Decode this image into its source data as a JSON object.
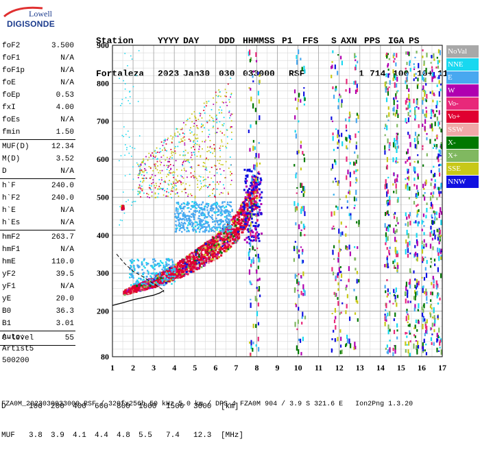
{
  "logo": {
    "line1": "Lowell",
    "line2": "DIGISONDE"
  },
  "header": {
    "labels": [
      "Station",
      "YYYY",
      "DAY",
      "DDD",
      "HHMMSS",
      "P1",
      "FFS",
      "S",
      "AXN",
      "PPS",
      "IGA",
      "PS"
    ],
    "values": [
      "Fortaleza",
      "2023",
      "Jan30",
      "030",
      "033000",
      "RSF",
      "1",
      "714",
      "100",
      "10+",
      "11"
    ]
  },
  "params": [
    {
      "name": "foF2",
      "value": "3.500"
    },
    {
      "name": "foF1",
      "value": "N/A"
    },
    {
      "name": "foF1p",
      "value": "N/A"
    },
    {
      "name": "foE",
      "value": "N/A"
    },
    {
      "name": "foEp",
      "value": "0.53"
    },
    {
      "name": "fxI",
      "value": "4.00"
    },
    {
      "name": "foEs",
      "value": "N/A"
    },
    {
      "name": "fmin",
      "value": "1.50"
    },
    {
      "sep": true
    },
    {
      "name": "MUF(D)",
      "value": "12.34"
    },
    {
      "name": "M(D)",
      "value": "3.52"
    },
    {
      "name": "D",
      "value": "N/A"
    },
    {
      "sep": true
    },
    {
      "name": "h`F",
      "value": "240.0"
    },
    {
      "name": "h`F2",
      "value": "240.0"
    },
    {
      "name": "h`E",
      "value": "N/A"
    },
    {
      "name": "h`Es",
      "value": "N/A"
    },
    {
      "sep": true
    },
    {
      "name": "hmF2",
      "value": "263.7"
    },
    {
      "name": "hmF1",
      "value": "N/A"
    },
    {
      "name": "hmE",
      "value": "110.0"
    },
    {
      "name": "yF2",
      "value": "39.5"
    },
    {
      "name": "yF1",
      "value": "N/A"
    },
    {
      "name": "yE",
      "value": "20.0"
    },
    {
      "name": "B0",
      "value": "36.3"
    },
    {
      "name": "B1",
      "value": "3.01"
    },
    {
      "sep": true
    },
    {
      "name": "C-level",
      "value": "55"
    },
    {
      "sep": true
    }
  ],
  "auto": {
    "line1": "Auto:",
    "line2": "Artist5",
    "line3": "500200"
  },
  "legend": [
    {
      "label": "NoVal",
      "color": "#a8a8a8"
    },
    {
      "label": "NNE",
      "color": "#18d8f0"
    },
    {
      "label": "E",
      "color": "#48a8f0"
    },
    {
      "label": "W",
      "color": "#b000b0"
    },
    {
      "label": "Vo-",
      "color": "#e8287a"
    },
    {
      "label": "Vo+",
      "color": "#e00030"
    },
    {
      "label": "SSW",
      "color": "#f0a8a8"
    },
    {
      "label": "X-",
      "color": "#007800"
    },
    {
      "label": "X+",
      "color": "#80b860"
    },
    {
      "label": "SSE",
      "color": "#c8c818"
    },
    {
      "label": "NNW",
      "color": "#1010e0"
    }
  ],
  "bottom": {
    "d_row": [
      "D",
      "100",
      "200",
      "400",
      "600",
      "800",
      "1000",
      "1500",
      "3000",
      "[km]"
    ],
    "muf_row": [
      "MUF",
      "3.8",
      "3.9",
      "4.1",
      "4.4",
      "4.8",
      "5.5",
      "7.4",
      "12.3",
      "[MHz]"
    ]
  },
  "footer": "FZA0M_2023030033000.RSF / 320fx256h 50 kHz 5.0 km / DPS-4 FZA0M 904 / 3.9 S 321.6 E   Ion2Png 1.3.20",
  "chart_data": {
    "type": "scatter",
    "xlim": [
      1,
      17
    ],
    "ylim": [
      80,
      900
    ],
    "x_ticks": [
      1,
      2,
      3,
      4,
      5,
      6,
      7,
      8,
      9,
      10,
      11,
      12,
      13,
      14,
      15,
      16,
      17
    ],
    "y_ticks": [
      80,
      200,
      300,
      400,
      500,
      600,
      700,
      800,
      900
    ],
    "grid": true,
    "legend_position": "right",
    "profile_curve": {
      "x": [
        1.0,
        1.5,
        2.0,
        2.5,
        3.0,
        3.3,
        3.5
      ],
      "y": [
        215,
        222,
        230,
        236,
        242,
        248,
        255
      ]
    },
    "dashed_curve": {
      "x": [
        1.2,
        1.6,
        2.0,
        2.5,
        3.0,
        3.4,
        3.5
      ],
      "y": [
        350,
        325,
        305,
        290,
        272,
        258,
        250
      ]
    },
    "o_trace": {
      "x": [
        1.5,
        2.0,
        2.5,
        3.0,
        3.5,
        4.0,
        4.5,
        5.0,
        5.5,
        6.0,
        6.5,
        7.0,
        7.3,
        7.5,
        7.8
      ],
      "y": [
        245,
        252,
        258,
        265,
        275,
        285,
        297,
        310,
        325,
        340,
        360,
        385,
        410,
        430,
        470
      ]
    },
    "echo_columns": [
      7.7,
      8.0,
      9.9,
      10.2,
      11.7,
      12.0,
      12.4,
      12.8,
      14.3,
      14.7,
      15.3,
      15.7,
      16.1,
      16.5,
      16.8
    ]
  }
}
